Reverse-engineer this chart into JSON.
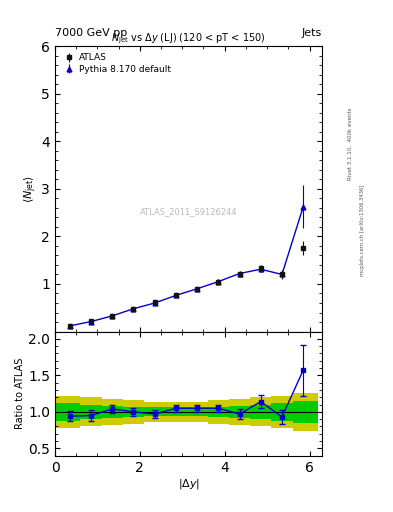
{
  "title_main": "7000 GeV pp",
  "title_right": "Jets",
  "plot_title": "$N_\\mathrm{jet}$ vs $\\Delta y$ (LJ) (120 < pT < 150)",
  "xlabel": "$|\\Delta y|$",
  "ylabel_main": "$\\langle N_\\mathrm{jet}\\rangle$",
  "ylabel_ratio": "Ratio to ATLAS",
  "watermark": "ATLAS_2011_S9126244",
  "rivet_label": "Rivet 3.1.10,  400k events",
  "arxiv_label": "mcplots.cern.ch [arXiv:1306.3436]",
  "atlas_x": [
    0.35,
    0.85,
    1.35,
    1.85,
    2.35,
    2.85,
    3.35,
    3.85,
    4.35,
    4.85,
    5.35,
    5.85
  ],
  "atlas_y": [
    0.12,
    0.22,
    0.33,
    0.48,
    0.62,
    0.76,
    0.9,
    1.05,
    1.2,
    1.33,
    1.22,
    1.75
  ],
  "atlas_yerr": [
    0.015,
    0.02,
    0.025,
    0.03,
    0.035,
    0.04,
    0.04,
    0.045,
    0.05,
    0.07,
    0.08,
    0.15
  ],
  "pythia_x": [
    0.35,
    0.85,
    1.35,
    1.85,
    2.35,
    2.85,
    3.35,
    3.85,
    4.35,
    4.85,
    5.35,
    5.85
  ],
  "pythia_y": [
    0.12,
    0.21,
    0.33,
    0.48,
    0.6,
    0.76,
    0.9,
    1.05,
    1.22,
    1.31,
    1.2,
    2.62
  ],
  "pythia_yerr": [
    0.01,
    0.015,
    0.02,
    0.025,
    0.03,
    0.035,
    0.04,
    0.045,
    0.05,
    0.065,
    0.09,
    0.45
  ],
  "ratio_x": [
    0.35,
    0.85,
    1.35,
    1.85,
    2.35,
    2.85,
    3.35,
    3.85,
    4.35,
    4.85,
    5.35,
    5.85
  ],
  "ratio_y": [
    0.94,
    0.95,
    1.04,
    1.0,
    0.97,
    1.05,
    1.05,
    1.05,
    0.97,
    1.14,
    0.93,
    1.57
  ],
  "ratio_yerr": [
    0.07,
    0.07,
    0.06,
    0.05,
    0.05,
    0.05,
    0.05,
    0.05,
    0.07,
    0.09,
    0.1,
    0.35
  ],
  "band_x_edges": [
    0.0,
    0.6,
    1.1,
    1.6,
    2.1,
    2.6,
    3.1,
    3.6,
    4.1,
    4.6,
    5.1,
    5.6,
    6.2
  ],
  "band_green_lo": [
    0.88,
    0.9,
    0.92,
    0.93,
    0.94,
    0.94,
    0.94,
    0.93,
    0.92,
    0.9,
    0.88,
    0.85
  ],
  "band_green_hi": [
    1.12,
    1.1,
    1.08,
    1.07,
    1.06,
    1.06,
    1.06,
    1.07,
    1.08,
    1.1,
    1.12,
    1.15
  ],
  "band_yellow_lo": [
    0.78,
    0.8,
    0.82,
    0.84,
    0.86,
    0.86,
    0.86,
    0.84,
    0.82,
    0.8,
    0.78,
    0.74
  ],
  "band_yellow_hi": [
    1.22,
    1.2,
    1.18,
    1.16,
    1.14,
    1.14,
    1.14,
    1.16,
    1.18,
    1.2,
    1.22,
    1.26
  ],
  "main_ylim": [
    0,
    6
  ],
  "ratio_ylim": [
    0.4,
    2.1
  ],
  "xlim": [
    0,
    6.3
  ],
  "main_yticks": [
    1,
    2,
    3,
    4,
    5,
    6
  ],
  "ratio_yticks": [
    0.5,
    1.0,
    1.5,
    2.0
  ],
  "color_atlas": "#111111",
  "color_pythia": "#0000cc",
  "color_green": "#00cc00",
  "color_yellow": "#cccc00",
  "color_line": "#000000",
  "bg_color": "#ffffff"
}
